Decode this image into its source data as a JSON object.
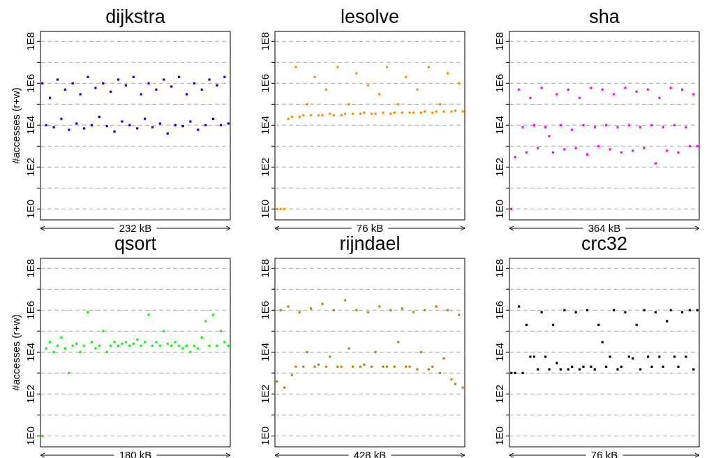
{
  "chart_data": [
    {
      "type": "scatter",
      "title": "dijkstra",
      "xlabel": "232 kB",
      "ylabel": "#accesses (r+w)",
      "log": true,
      "grid": "y",
      "marker": "square",
      "tick_labels": "y",
      "ylim": [
        0.3,
        300000000.0
      ],
      "yticks": [
        {
          "value": 1,
          "label": "1E0"
        },
        {
          "value": 10,
          "label": null
        },
        {
          "value": 100,
          "label": "1E2"
        },
        {
          "value": 1000,
          "label": null
        },
        {
          "value": 10000,
          "label": "1E4"
        },
        {
          "value": 100000,
          "label": null
        },
        {
          "value": 1000000,
          "label": "1E6"
        },
        {
          "value": 10000000,
          "label": null
        },
        {
          "value": 100000000,
          "label": "1E8"
        }
      ],
      "categories": [
        null,
        null,
        null,
        null,
        null,
        null,
        null,
        null,
        null,
        null,
        null,
        null,
        null,
        null,
        null,
        null,
        null,
        null,
        null,
        null,
        null,
        null,
        null,
        null,
        null,
        null,
        null,
        null,
        null,
        null,
        null,
        null,
        null,
        null,
        null,
        null,
        null,
        null,
        null,
        null,
        null,
        null,
        null,
        null,
        null,
        null,
        null,
        null,
        null,
        null
      ],
      "series": [
        {
          "color": "#0000ff",
          "values": [
            1000000.0,
            10000.0,
            200000.0,
            8000.0,
            1500000.0,
            20000.0,
            500000.0,
            6000.0,
            1000000.0,
            12000.0,
            300000.0,
            7000.0,
            2000000.0,
            10000.0,
            600000.0,
            25000.0,
            1000000.0,
            9000.0,
            400000.0,
            5000.0,
            1500000.0,
            15000.0,
            800000.0,
            10000.0,
            2000000.0,
            7000.0,
            300000.0,
            20000.0,
            1000000.0,
            8000.0,
            500000.0,
            12000.0,
            1500000.0,
            4000.0,
            700000.0,
            10000.0,
            2000000.0,
            9000.0,
            300000.0,
            15000.0,
            1000000.0,
            6000.0,
            500000.0,
            10000.0,
            1500000.0,
            20000.0,
            800000.0,
            10000.0,
            2000000.0,
            12000.0
          ]
        }
      ]
    },
    {
      "type": "scatter",
      "title": "lesolve",
      "xlabel": "76 kB",
      "log": true,
      "grid": "y",
      "marker": "square",
      "tick_labels": "y",
      "ylim": [
        0.3,
        300000000.0
      ],
      "yticks": [
        {
          "value": 1,
          "label": "1E0"
        },
        {
          "value": 10,
          "label": null
        },
        {
          "value": 100,
          "label": "1E2"
        },
        {
          "value": 1000,
          "label": null
        },
        {
          "value": 10000,
          "label": "1E4"
        },
        {
          "value": 100000,
          "label": null
        },
        {
          "value": 1000000,
          "label": "1E6"
        },
        {
          "value": 10000000,
          "label": null
        },
        {
          "value": 100000000,
          "label": "1E8"
        }
      ],
      "categories": [
        null,
        null,
        null,
        null,
        null,
        null,
        null,
        null,
        null,
        null,
        null,
        null,
        null,
        null,
        null,
        null,
        null,
        null,
        null,
        null,
        null,
        null,
        null,
        null,
        null,
        null,
        null,
        null,
        null,
        null,
        null,
        null,
        null,
        null,
        null,
        null,
        null,
        null,
        null,
        null,
        null,
        null,
        null,
        null,
        null,
        null,
        null,
        null,
        null,
        null
      ],
      "series": [
        {
          "color": "#ff8c00",
          "values": [
            1,
            1,
            1,
            20000.0,
            25000.0,
            6000000.0,
            25000.0,
            30000.0,
            100000.0,
            30000.0,
            2000000.0,
            30000.0,
            30000.0,
            500000.0,
            35000.0,
            30000.0,
            6000000.0,
            30000.0,
            35000.0,
            100000.0,
            35000.0,
            3000000.0,
            35000.0,
            40000.0,
            800000.0,
            35000.0,
            35000.0,
            300000.0,
            40000.0,
            6000000.0,
            35000.0,
            40000.0,
            100000.0,
            40000.0,
            2000000.0,
            40000.0,
            40000.0,
            500000.0,
            40000.0,
            45000.0,
            6000000.0,
            40000.0,
            45000.0,
            100000.0,
            45000.0,
            3000000.0,
            45000.0,
            50000.0,
            1000000.0,
            45000.0
          ]
        }
      ]
    },
    {
      "type": "scatter",
      "title": "sha",
      "xlabel": "364 kB",
      "log": true,
      "grid": "y",
      "marker": "square",
      "tick_labels": "y",
      "ylim": [
        0.3,
        300000000.0
      ],
      "yticks": [
        {
          "value": 1,
          "label": "1E0"
        },
        {
          "value": 10,
          "label": null
        },
        {
          "value": 100,
          "label": "1E2"
        },
        {
          "value": 1000,
          "label": null
        },
        {
          "value": 10000,
          "label": "1E4"
        },
        {
          "value": 100000,
          "label": null
        },
        {
          "value": 1000000,
          "label": "1E6"
        },
        {
          "value": 10000000,
          "label": null
        },
        {
          "value": 100000000,
          "label": "1E8"
        }
      ],
      "categories": [
        null,
        null,
        null,
        null,
        null,
        null,
        null,
        null,
        null,
        null,
        null,
        null,
        null,
        null,
        null,
        null,
        null,
        null,
        null,
        null,
        null,
        null,
        null,
        null,
        null,
        null,
        null,
        null,
        null,
        null,
        null,
        null,
        null,
        null,
        null,
        null,
        null,
        null,
        null,
        null,
        null,
        null,
        null,
        null,
        null,
        null,
        null,
        null,
        null,
        null
      ],
      "series": [
        {
          "color": "#ff00ff",
          "values": [
            1,
            300.0,
            500000.0,
            8000.0,
            500.0,
            200000.0,
            10000.0,
            800.0,
            600000.0,
            8000.0,
            3000.0,
            500.0,
            300000.0,
            10000.0,
            700.0,
            500000.0,
            6000.0,
            800.0,
            200000.0,
            10000.0,
            400.0,
            600000.0,
            8000.0,
            1000.0,
            500000.0,
            10000.0,
            700.0,
            300000.0,
            8000.0,
            500.0,
            600000.0,
            10000.0,
            600.0,
            400000.0,
            8000.0,
            800.0,
            500000.0,
            10000.0,
            150.0,
            200000.0,
            8000.0,
            600.0,
            600000.0,
            10000.0,
            500.0,
            500000.0,
            8000.0,
            1000.0,
            300000.0,
            1000.0
          ]
        }
      ]
    },
    {
      "type": "scatter",
      "title": "qsort",
      "xlabel": "180 kB",
      "ylabel": "#accesses (r+w)",
      "log": true,
      "grid": "y",
      "marker": "square",
      "tick_labels": "y",
      "ylim": [
        0.3,
        300000000.0
      ],
      "yticks": [
        {
          "value": 1,
          "label": "1E0"
        },
        {
          "value": 10,
          "label": null
        },
        {
          "value": 100,
          "label": "1E2"
        },
        {
          "value": 1000,
          "label": null
        },
        {
          "value": 10000,
          "label": "1E4"
        },
        {
          "value": 100000,
          "label": null
        },
        {
          "value": 1000000,
          "label": "1E6"
        },
        {
          "value": 10000000,
          "label": null
        },
        {
          "value": 100000000,
          "label": "1E8"
        }
      ],
      "categories": [
        null,
        null,
        null,
        null,
        null,
        null,
        null,
        null,
        null,
        null,
        null,
        null,
        null,
        null,
        null,
        null,
        null,
        null,
        null,
        null,
        null,
        null,
        null,
        null,
        null,
        null,
        null,
        null,
        null,
        null,
        null,
        null,
        null,
        null,
        null,
        null,
        null,
        null,
        null,
        null,
        null,
        null,
        null,
        null,
        null,
        null,
        null,
        null,
        null,
        null
      ],
      "series": [
        {
          "color": "#00ff00",
          "values": [
            1,
            15000.0,
            30000.0,
            10000.0,
            20000.0,
            50000.0,
            15000.0,
            1000.0,
            20000.0,
            25000.0,
            10000.0,
            20000.0,
            800000.0,
            30000.0,
            15000.0,
            20000.0,
            100000.0,
            10000.0,
            20000.0,
            30000.0,
            20000.0,
            25000.0,
            30000.0,
            20000.0,
            25000.0,
            40000.0,
            20000.0,
            30000.0,
            600000.0,
            20000.0,
            30000.0,
            20000.0,
            100000.0,
            25000.0,
            20000.0,
            30000.0,
            20000.0,
            15000.0,
            20000.0,
            10000.0,
            20000.0,
            15000.0,
            50000.0,
            300000.0,
            20000.0,
            600000.0,
            20000.0,
            100000.0,
            30000.0,
            20000.0
          ]
        }
      ]
    },
    {
      "type": "scatter",
      "title": "rijndael",
      "xlabel": "428 kB",
      "log": true,
      "grid": "y",
      "marker": "square",
      "tick_labels": "y",
      "ylim": [
        0.3,
        300000000.0
      ],
      "yticks": [
        {
          "value": 1,
          "label": "1E0"
        },
        {
          "value": 10,
          "label": null
        },
        {
          "value": 100,
          "label": "1E2"
        },
        {
          "value": 1000,
          "label": null
        },
        {
          "value": 10000,
          "label": "1E4"
        },
        {
          "value": 100000,
          "label": null
        },
        {
          "value": 1000000,
          "label": "1E6"
        },
        {
          "value": 10000000,
          "label": null
        },
        {
          "value": 100000000,
          "label": "1E8"
        }
      ],
      "categories": [
        null,
        null,
        null,
        null,
        null,
        null,
        null,
        null,
        null,
        null,
        null,
        null,
        null,
        null,
        null,
        null,
        null,
        null,
        null,
        null,
        null,
        null,
        null,
        null,
        null,
        null,
        null,
        null,
        null,
        null,
        null,
        null,
        null,
        null,
        null,
        null,
        null,
        null,
        null,
        null,
        null,
        null,
        null,
        null,
        null,
        null,
        null,
        null,
        null,
        null
      ],
      "series": [
        {
          "color": "#b8860b",
          "values": [
            400.0,
            1000000.0,
            200.0,
            1500000.0,
            800.0,
            2000.0,
            800000.0,
            2000.0,
            10000.0,
            1200000.0,
            2000.0,
            2500.0,
            2000000.0,
            2000.0,
            6000.0,
            1000000.0,
            2000.0,
            2000.0,
            3000000.0,
            15000.0,
            2000.0,
            1000000.0,
            2000.0,
            2500.0,
            800000.0,
            2000.0,
            10000.0,
            1500000.0,
            2000.0,
            2000.0,
            1000000.0,
            2000.0,
            30000.0,
            1200000.0,
            2000.0,
            2000.0,
            800000.0,
            1500.0,
            10000.0,
            1000000.0,
            1500.0,
            2000.0,
            1500000.0,
            1000.0,
            5000.0,
            1000000.0,
            500.0,
            300.0,
            600000.0,
            200.0
          ]
        }
      ]
    },
    {
      "type": "scatter",
      "title": "crc32",
      "xlabel": "76 kB",
      "log": true,
      "grid": "y",
      "marker": "square",
      "tick_labels": "y",
      "ylim": [
        0.3,
        300000000.0
      ],
      "yticks": [
        {
          "value": 1,
          "label": "1E0"
        },
        {
          "value": 10,
          "label": null
        },
        {
          "value": 100,
          "label": "1E2"
        },
        {
          "value": 1000,
          "label": null
        },
        {
          "value": 10000,
          "label": "1E4"
        },
        {
          "value": 100000,
          "label": null
        },
        {
          "value": 1000000,
          "label": "1E6"
        },
        {
          "value": 10000000,
          "label": null
        },
        {
          "value": 100000000,
          "label": "1E8"
        }
      ],
      "categories": [
        null,
        null,
        null,
        null,
        null,
        null,
        null,
        null,
        null,
        null,
        null,
        null,
        null,
        null,
        null,
        null,
        null,
        null,
        null,
        null,
        null,
        null,
        null,
        null,
        null,
        null,
        null,
        null,
        null,
        null,
        null,
        null,
        null,
        null,
        null,
        null,
        null,
        null,
        null,
        null,
        null,
        null,
        null,
        null,
        null,
        null,
        null,
        null,
        null,
        null
      ],
      "series": [
        {
          "color": "#000000",
          "values": [
            1000.0,
            1000.0,
            1500000.0,
            1000.0,
            200000.0,
            6000.0,
            6000.0,
            1500.0,
            800000.0,
            6000.0,
            1500.0,
            200000.0,
            3000.0,
            1500.0,
            1000000.0,
            1500.0,
            2000.0,
            800000.0,
            1500.0,
            2000.0,
            1000000.0,
            2000.0,
            1500.0,
            200000.0,
            30000.0,
            2000.0,
            6000.0,
            1000000.0,
            1500.0,
            2000.0,
            800000.0,
            6000.0,
            5000.0,
            200000.0,
            1500.0,
            1000000.0,
            6000.0,
            2000.0,
            800000.0,
            6000.0,
            2000.0,
            300000.0,
            1000000.0,
            6000.0,
            2000.0,
            800000.0,
            6000.0,
            1000000.0,
            1500.0,
            1000000.0
          ]
        }
      ]
    }
  ]
}
